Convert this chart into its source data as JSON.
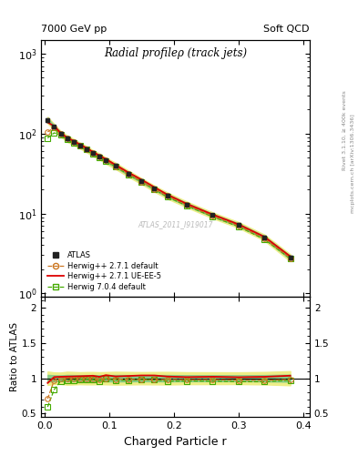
{
  "title_top_left": "7000 GeV pp",
  "title_top_right": "Soft QCD",
  "plot_title": "Radial profileρ (track jets)",
  "xlabel": "Charged Particle r",
  "ylabel_ratio": "Ratio to ATLAS",
  "right_label_top": "Rivet 3.1.10, ≥ 400k events",
  "right_label_bottom": "mcplots.cern.ch [arXiv:1306.3436]",
  "watermark": "ATLAS_2011_I919017",
  "atlas_x": [
    0.005,
    0.015,
    0.025,
    0.035,
    0.045,
    0.055,
    0.065,
    0.075,
    0.085,
    0.095,
    0.11,
    0.13,
    0.15,
    0.17,
    0.19,
    0.22,
    0.26,
    0.3,
    0.34,
    0.38
  ],
  "atlas_y": [
    148,
    122,
    100,
    87,
    79,
    71,
    64,
    57,
    52,
    46,
    39.5,
    31.5,
    25.5,
    20.5,
    16.8,
    13.0,
    9.5,
    7.2,
    5.0,
    2.8
  ],
  "atlas_yerr": [
    7,
    5,
    4,
    4,
    3.5,
    3,
    2.8,
    2.5,
    2.2,
    2,
    1.8,
    1.4,
    1.1,
    0.9,
    0.75,
    0.55,
    0.4,
    0.3,
    0.22,
    0.14
  ],
  "herwig_default_x": [
    0.005,
    0.015,
    0.025,
    0.035,
    0.045,
    0.055,
    0.065,
    0.075,
    0.085,
    0.095,
    0.11,
    0.13,
    0.15,
    0.17,
    0.19,
    0.22,
    0.26,
    0.3,
    0.34,
    0.38
  ],
  "herwig_default_y": [
    105,
    118,
    99,
    87,
    79,
    71,
    64,
    57,
    51,
    46,
    39,
    31,
    25,
    20,
    16.5,
    12.7,
    9.3,
    7.0,
    4.85,
    2.75
  ],
  "herwig_ueee5_x": [
    0.005,
    0.015,
    0.025,
    0.035,
    0.045,
    0.055,
    0.065,
    0.075,
    0.085,
    0.095,
    0.11,
    0.13,
    0.15,
    0.17,
    0.19,
    0.22,
    0.26,
    0.3,
    0.34,
    0.38
  ],
  "herwig_ueee5_y": [
    138,
    124,
    102,
    89,
    81,
    73,
    66,
    59,
    53,
    48,
    40.5,
    32.5,
    26.5,
    21.3,
    17.2,
    13.2,
    9.7,
    7.3,
    5.1,
    2.9
  ],
  "herwig704_x": [
    0.005,
    0.015,
    0.025,
    0.035,
    0.045,
    0.055,
    0.065,
    0.075,
    0.085,
    0.095,
    0.11,
    0.13,
    0.15,
    0.17,
    0.19,
    0.22,
    0.26,
    0.3,
    0.34,
    0.38
  ],
  "herwig704_y": [
    88,
    102,
    96,
    84,
    77,
    70,
    63,
    56,
    50,
    45.5,
    38.5,
    30.5,
    25,
    20,
    16.1,
    12.5,
    9.1,
    6.85,
    4.75,
    2.72
  ],
  "color_atlas": "#222222",
  "color_herwig_default": "#cc7722",
  "color_herwig_ueee5": "#dd0000",
  "color_herwig704": "#44aa00",
  "color_band_green": "#88cc88",
  "color_band_yellow": "#eeee88",
  "ylim_main": [
    0.9,
    1500
  ],
  "ylim_ratio": [
    0.45,
    2.15
  ],
  "xlim": [
    -0.005,
    0.41
  ]
}
